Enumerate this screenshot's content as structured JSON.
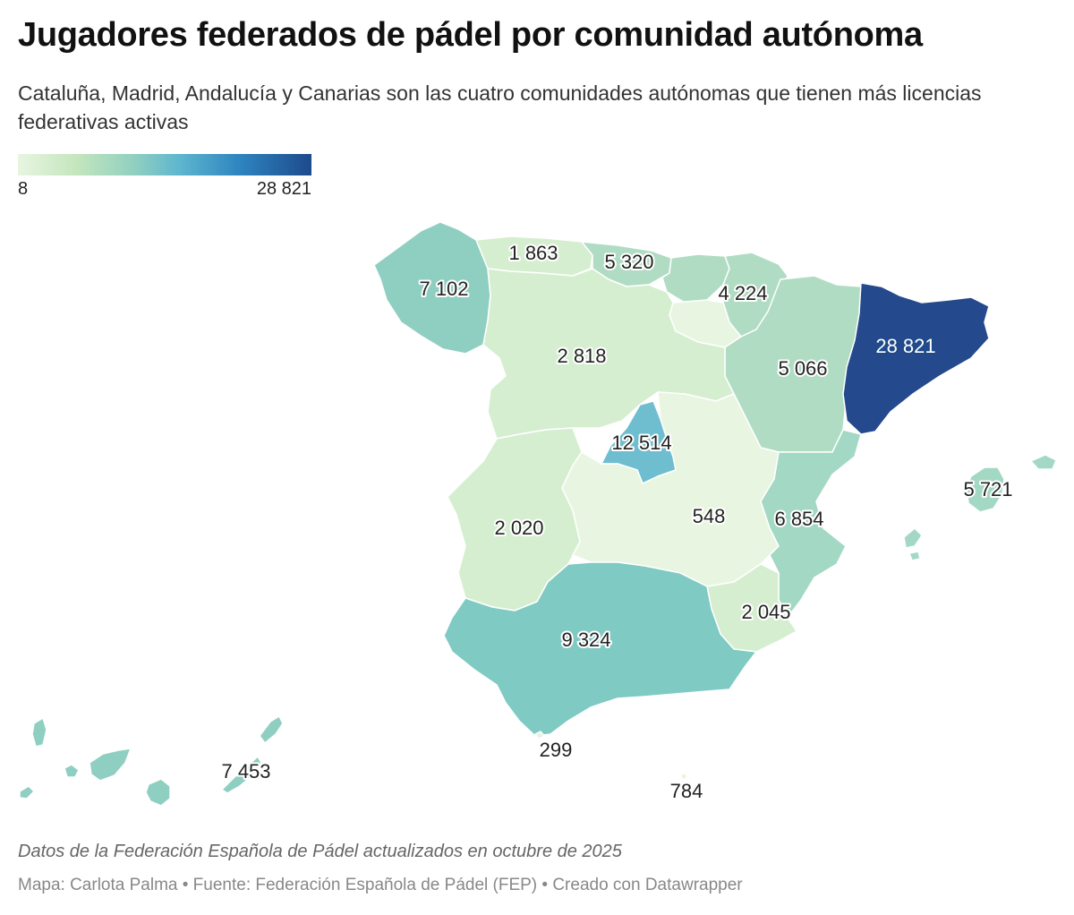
{
  "title": "Jugadores federados de pádel por comunidad autónoma",
  "subtitle": "Cataluña, Madrid, Andalucía y Canarias son las cuatro comunidades autónomas que tienen más licencias federativas activas",
  "legend": {
    "min": "8",
    "max": "28 821"
  },
  "colors": {
    "scale": [
      "#e8f5e1",
      "#c4e6bd",
      "#8fcfc1",
      "#5eb6cf",
      "#2f86c0",
      "#1d4a8c"
    ],
    "galicia": "#8fcfc1",
    "asturias": "#d6eed0",
    "cantabria": "#b0dcc3",
    "pais_vasco": "#b0dcc3",
    "navarra": "#b0dcc3",
    "la_rioja": "#e8f5e1",
    "aragon": "#b0dcc3",
    "cataluna": "#24498c",
    "castilla_leon": "#d6eed0",
    "madrid": "#6ebecf",
    "extremadura": "#d6eed0",
    "castilla_la_mancha": "#e8f5e1",
    "valencia": "#a2d8c4",
    "murcia": "#d6eed0",
    "andalucia": "#7fcac3",
    "baleares": "#a2d8c4",
    "canarias": "#8fcfc1",
    "ceuta": "#e8f5e1",
    "melilla": "#e8f5e1"
  },
  "regions": {
    "galicia": "7 102",
    "asturias": "1 863",
    "cantabria": "5 320",
    "pais_vasco_navarra": "4 224",
    "aragon": "5 066",
    "cataluna": "28 821",
    "castilla_leon": "2 818",
    "madrid": "12 514",
    "extremadura": "2 020",
    "castilla_la_mancha": "548",
    "valencia": "6 854",
    "baleares": "5 721",
    "murcia": "2 045",
    "andalucia": "9 324",
    "ceuta": "299",
    "melilla": "784",
    "canarias": "7 453"
  },
  "note": "Datos de la Federación Española de Pádel actualizados en octubre de 2025",
  "footer": "Mapa: Carlota Palma • Fuente: Federación Española de Pádel (FEP) • Creado con Datawrapper"
}
